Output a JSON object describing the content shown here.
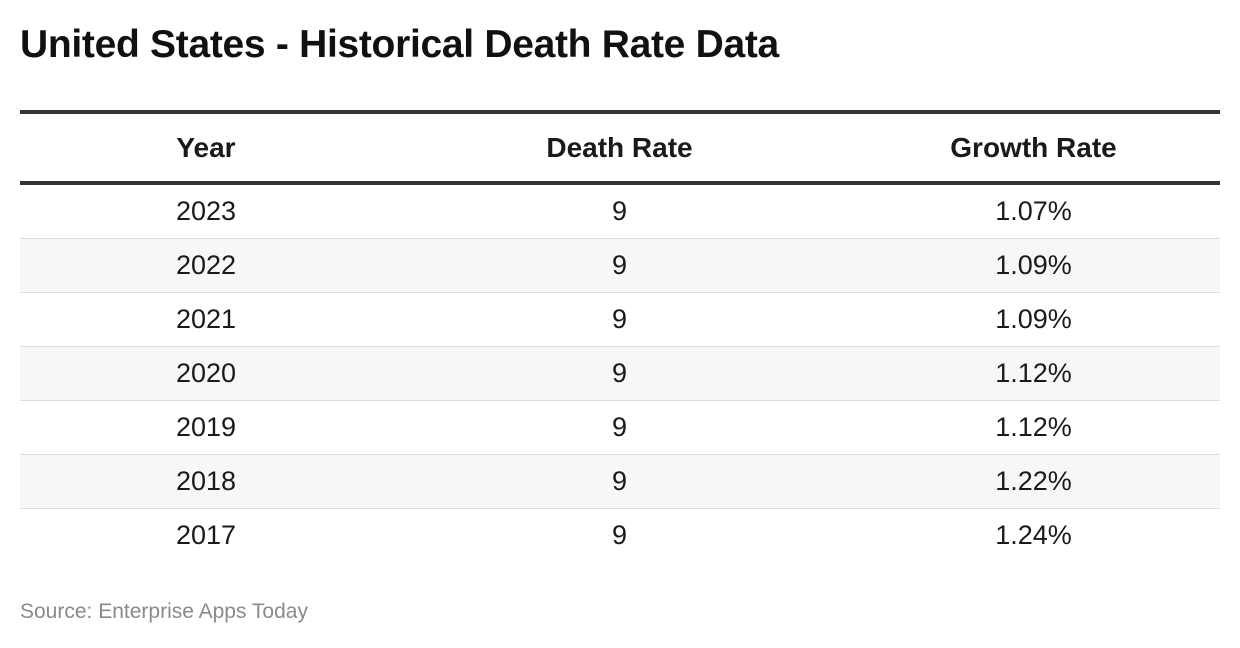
{
  "title": "United States - Historical Death Rate Data",
  "source": "Source: Enterprise Apps Today",
  "chart_data": {
    "type": "table",
    "title": "United States - Historical Death Rate Data",
    "columns": [
      "Year",
      "Death Rate",
      "Growth Rate"
    ],
    "rows": [
      [
        "2023",
        "9",
        "1.07%"
      ],
      [
        "2022",
        "9",
        "1.09%"
      ],
      [
        "2021",
        "9",
        "1.09%"
      ],
      [
        "2020",
        "9",
        "1.12%"
      ],
      [
        "2019",
        "9",
        "1.12%"
      ],
      [
        "2018",
        "9",
        "1.22%"
      ],
      [
        "2017",
        "9",
        "1.24%"
      ]
    ]
  }
}
